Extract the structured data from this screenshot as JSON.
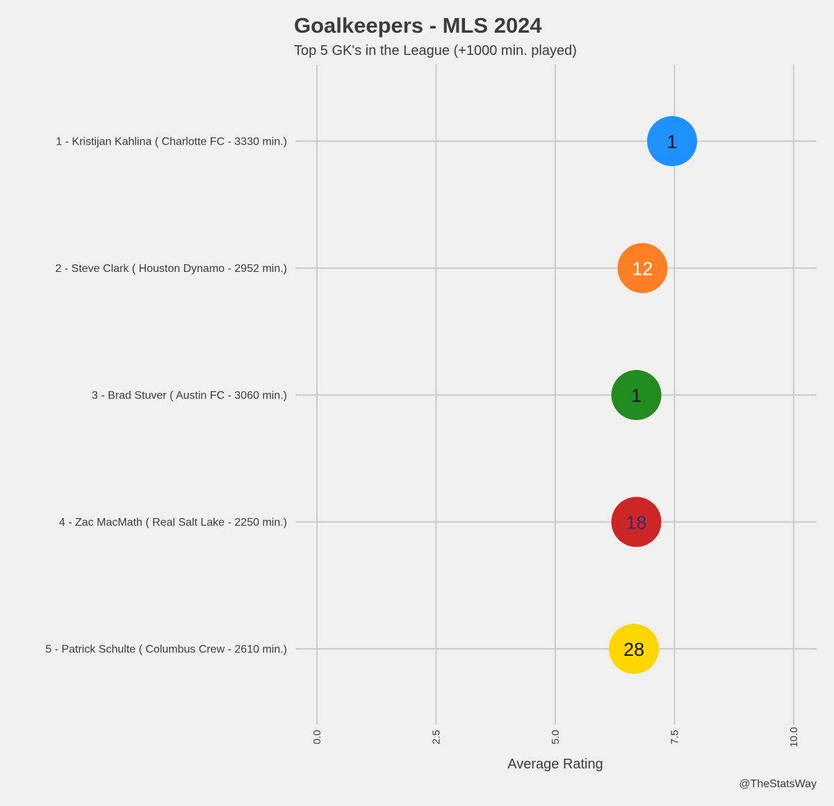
{
  "chart_data": {
    "type": "scatter",
    "title": "Goalkeepers - MLS 2024",
    "subtitle": "Top 5 GK's in the League (+1000 min. played)",
    "xlabel": "Average Rating",
    "ylabel": "",
    "xlim": [
      0,
      10
    ],
    "x_ticks": [
      "0.0",
      "2.5",
      "5.0",
      "7.5",
      "10.0"
    ],
    "x_tick_values": [
      0,
      2.5,
      5,
      7.5,
      10
    ],
    "grid": true,
    "categories": [
      "1 - Kristijan Kahlina  ( Charlotte FC - 3330 min.)",
      "2 - Steve Clark  ( Houston Dynamo - 2952 min.)",
      "3 - Brad Stuver  ( Austin FC - 3060 min.)",
      "4 - Zac MacMath  ( Real Salt Lake - 2250 min.)",
      "5 - Patrick Schulte  ( Columbus Crew - 2610 min.)"
    ],
    "values": [
      7.45,
      6.83,
      6.7,
      6.7,
      6.65
    ],
    "labels": [
      "1",
      "12",
      "1",
      "18",
      "28"
    ],
    "colors": [
      "#1e90ff",
      "#ff7f27",
      "#228b22",
      "#cd2626",
      "#ffd700"
    ],
    "label_colors": [
      "#111111",
      "#ffffff",
      "#111111",
      "#3a2a6e",
      "#111111"
    ]
  },
  "credit": "@TheStatsWay"
}
